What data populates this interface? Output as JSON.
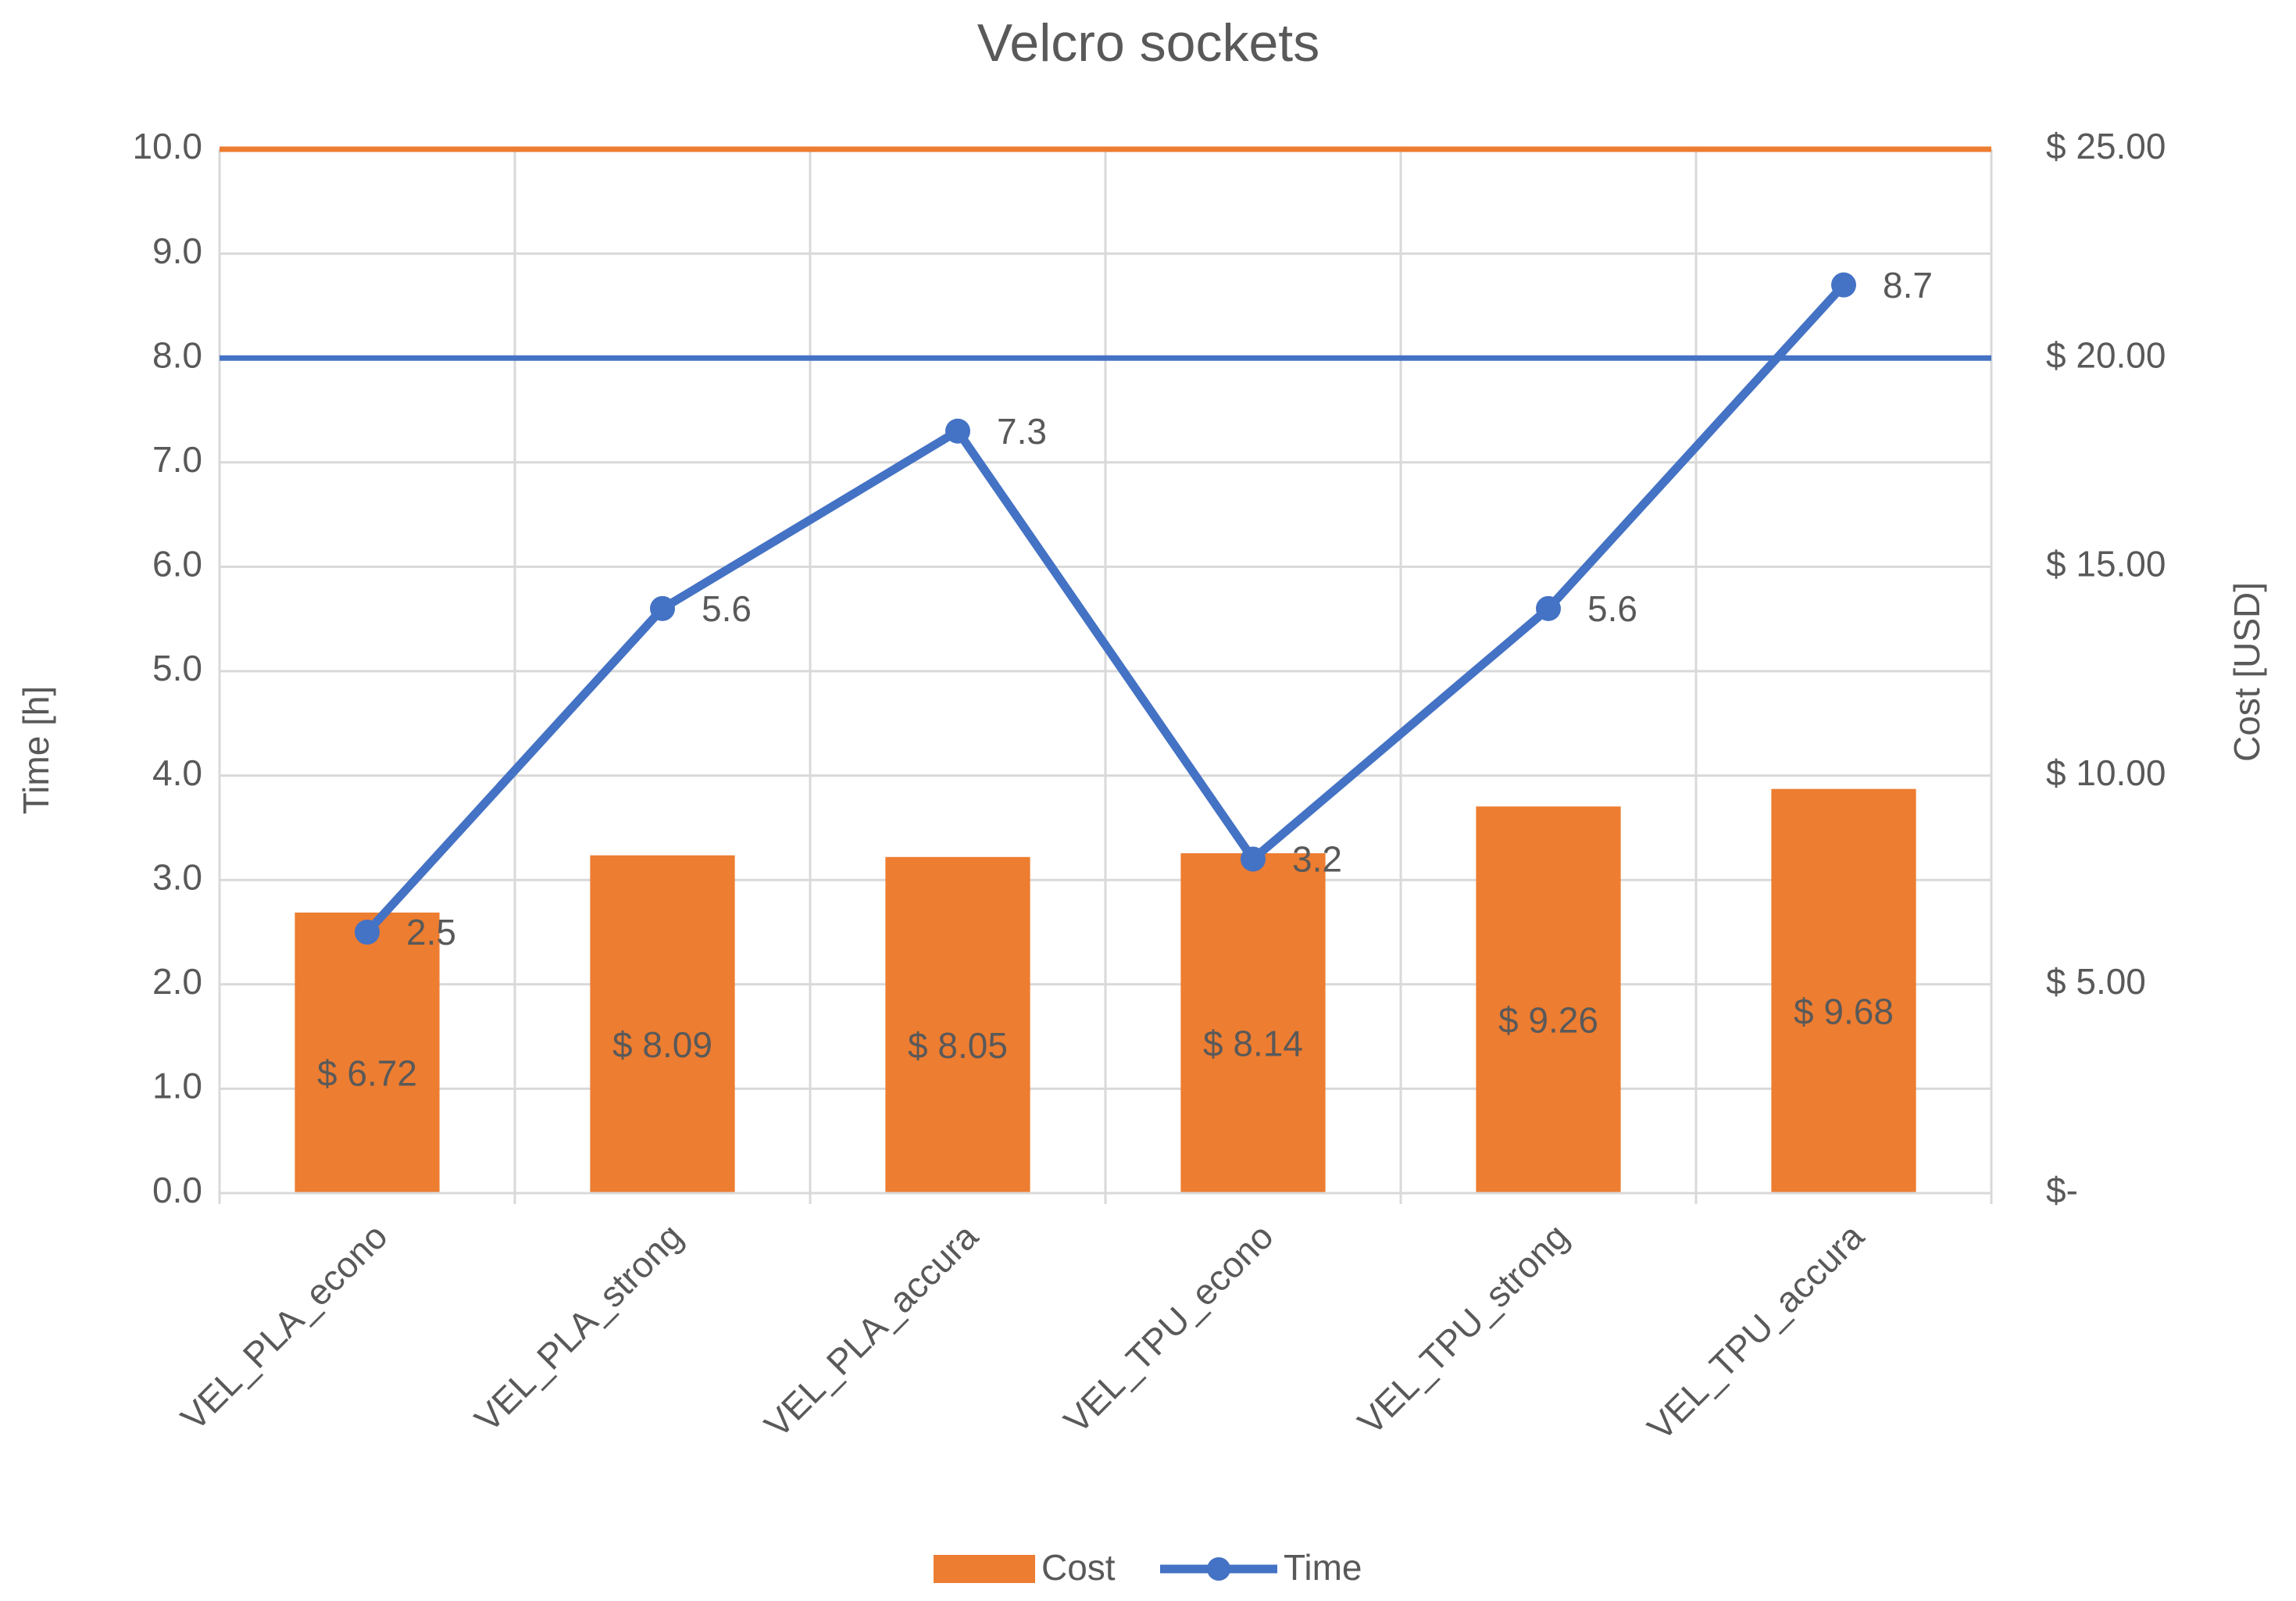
{
  "chart_data": {
    "type": "combo",
    "title": "Velcro sockets",
    "categories": [
      "VEL_PLA_econo",
      "VEL_PLA_strong",
      "VEL_PLA_accura",
      "VEL_TPU_econo",
      "VEL_TPU_strong",
      "VEL_TPU_accura"
    ],
    "series": [
      {
        "name": "Cost",
        "type": "bar",
        "axis": "y2",
        "color": "#ed7d31",
        "values": [
          6.72,
          8.09,
          8.05,
          8.14,
          9.26,
          9.68
        ],
        "value_labels": [
          "$ 6.72",
          "$ 8.09",
          "$ 8.05",
          "$ 8.14",
          "$ 9.26",
          "$ 9.68"
        ]
      },
      {
        "name": "Time",
        "type": "line",
        "axis": "y",
        "color": "#4472c4",
        "values": [
          2.5,
          5.6,
          7.3,
          3.2,
          5.6,
          8.7
        ]
      }
    ],
    "reference_lines": [
      {
        "value": 8,
        "axis": "y",
        "color": "#4472c4"
      },
      {
        "value": 25,
        "axis": "y2",
        "color": "#ed7d31"
      }
    ],
    "ylabel": "Time [h]",
    "y2label": "Cost [USD]",
    "ylim": [
      0,
      10
    ],
    "yticks": [
      {
        "value": 0,
        "label": "0.0"
      },
      {
        "value": 1,
        "label": "1.0"
      },
      {
        "value": 2,
        "label": "2.0"
      },
      {
        "value": 3,
        "label": "3.0"
      },
      {
        "value": 4,
        "label": "4.0"
      },
      {
        "value": 5,
        "label": "5.0"
      },
      {
        "value": 6,
        "label": "6.0"
      },
      {
        "value": 7,
        "label": "7.0"
      },
      {
        "value": 8,
        "label": "8.0"
      },
      {
        "value": 9,
        "label": "9.0"
      },
      {
        "value": 10,
        "label": "10.0"
      }
    ],
    "y2lim": [
      0,
      25
    ],
    "y2ticks": [
      {
        "value": 0,
        "label": "$-"
      },
      {
        "value": 5,
        "label": "$ 5.00"
      },
      {
        "value": 10,
        "label": "$ 10.00"
      },
      {
        "value": 15,
        "label": "$ 15.00"
      },
      {
        "value": 20,
        "label": "$ 20.00"
      },
      {
        "value": 25,
        "label": "$ 25.00"
      }
    ],
    "grid": true,
    "legend": "bottom"
  }
}
